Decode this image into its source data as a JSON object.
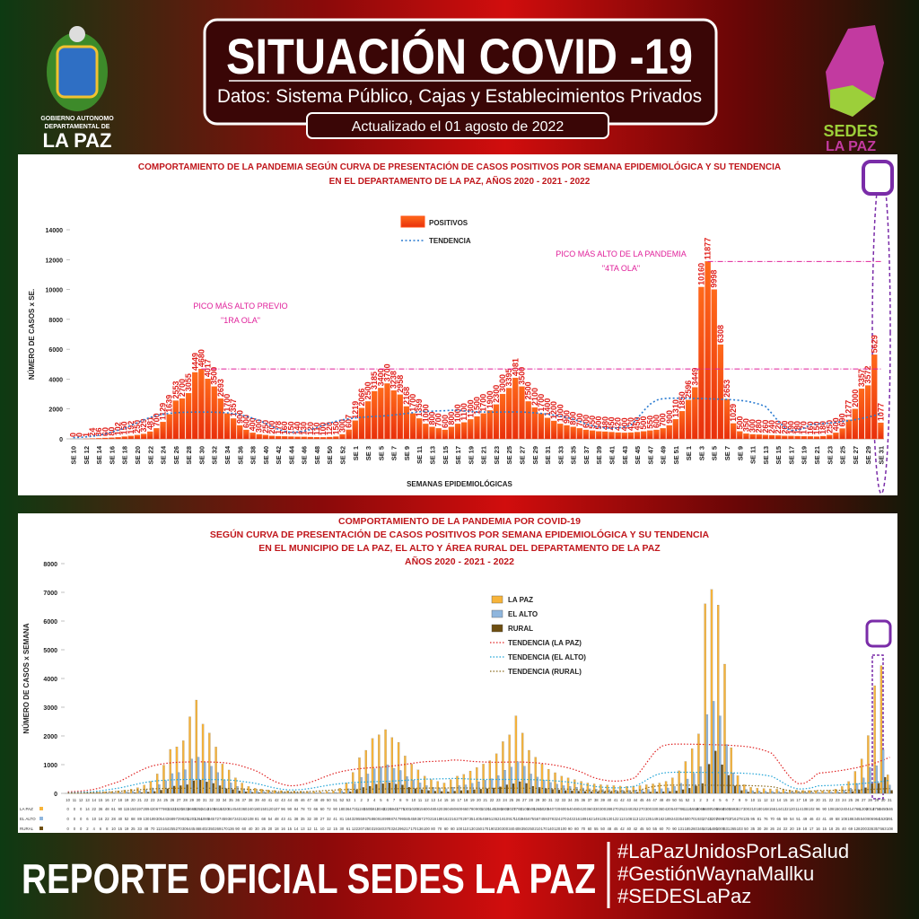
{
  "header": {
    "title": "SITUACIÓN COVID -19",
    "subtitle": "Datos: Sistema Público, Cajas y Establecimientos Privados",
    "updated": "Actualizado el  01  agosto  de 2022"
  },
  "logos": {
    "left": [
      "GOBIERNO AUTONOMO",
      "DEPARTAMENTAL DE",
      "LA PAZ"
    ],
    "right": [
      "SEDES",
      "LA PAZ"
    ]
  },
  "footer": {
    "title": "REPORTE OFICIAL SEDES LA PAZ",
    "hashtags": [
      "#LaPazUnidosPorLaSalud",
      "#GestiónWaynaMallku",
      "#SEDESLaPaz"
    ]
  },
  "chart_data": [
    {
      "type": "bar",
      "title": [
        "COMPORTAMIENTO DE LA PANDEMIA SEGÚN CURVA DE PRESENTACIÓN DE CASOS POSITIVOS POR SEMANA EPIDEMIOLÓGICA Y SU TENDENCIA",
        "EN EL DEPARTAMENTO DE LA PAZ, AÑOS 2020 - 2021 - 2022"
      ],
      "x_label": "SEMANAS EPIDEMIOLÓGICAS",
      "y_label": "NÚMERO DE CASOS x SE.",
      "trend_label": "TENDENCIA",
      "trend_color": "#2a7bd1",
      "annotations": [
        "PICO MÁS ALTO PREVIO",
        "\"1RA OLA\"",
        "PICO MÁS ALTO DE LA PANDEMIA",
        "\"4TA OLA\""
      ],
      "ylim": [
        0,
        14000
      ],
      "yticks": [
        0,
        2000,
        4000,
        6000,
        8000,
        10000,
        12000,
        14000
      ],
      "categories": [
        "SE 10",
        null,
        "SE 12",
        null,
        "SE 14",
        null,
        "SE 16",
        null,
        "SE 18",
        null,
        "SE 20",
        null,
        "SE 22",
        null,
        "SE 24",
        null,
        "SE 26",
        null,
        "SE 28",
        null,
        "SE 30",
        null,
        "SE 32",
        null,
        "SE 34",
        null,
        "SE 36",
        null,
        "SE 38",
        null,
        "SE 40",
        null,
        "SE 42",
        null,
        "SE 44",
        null,
        "SE 46",
        null,
        "SE 48",
        null,
        "SE 50",
        null,
        "SE 52",
        null,
        "SE 1",
        null,
        "SE 3",
        null,
        "SE 5",
        null,
        "SE 7",
        null,
        "SE 9",
        null,
        "SE 11",
        null,
        "SE 13",
        null,
        "SE 15",
        null,
        "SE 17",
        null,
        "SE 19",
        null,
        "SE 21",
        null,
        "SE 23",
        null,
        "SE 25",
        null,
        "SE 27",
        null,
        "SE 29",
        null,
        "SE 31",
        null,
        "SE 33",
        null,
        "SE 35",
        null,
        "SE 37",
        null,
        "SE 39",
        null,
        "SE 41",
        null,
        "SE 43",
        null,
        "SE 45",
        null,
        "SE 47",
        null,
        "SE 49",
        null,
        "SE 51",
        null,
        "SE 1",
        null,
        "SE 3",
        null,
        "SE 5",
        null,
        "SE 7",
        null,
        "SE 9",
        null,
        "SE 11",
        null,
        "SE 13",
        null,
        "SE 15",
        null,
        "SE 17",
        null,
        "SE 19",
        null,
        "SE 21",
        null,
        "SE 23",
        null,
        "SE 25",
        null,
        "SE 27",
        null,
        "SE 29",
        null,
        "SE 31"
      ],
      "series": [
        {
          "name": "POSITIVOS",
          "color": "#ff4d12",
          "values": [
            0,
            0,
            1,
            24,
            36,
            60,
            80,
            102,
            150,
            192,
            250,
            329,
            481,
            700,
            1129,
            1639,
            2553,
            2700,
            3055,
            4449,
            4680,
            4017,
            3500,
            2693,
            1700,
            1357,
            900,
            600,
            400,
            300,
            250,
            200,
            178,
            160,
            150,
            140,
            130,
            120,
            110,
            100,
            120,
            150,
            300,
            607,
            1219,
            2066,
            2500,
            3185,
            3400,
            3700,
            3238,
            2958,
            2168,
            1700,
            1359,
            1000,
            800,
            700,
            600,
            800,
            1000,
            1100,
            1300,
            1500,
            1700,
            1900,
            2300,
            3000,
            3395,
            4081,
            3500,
            2500,
            2100,
            1700,
            1400,
            1200,
            1000,
            900,
            800,
            700,
            600,
            550,
            500,
            480,
            450,
            420,
            400,
            420,
            450,
            500,
            550,
            600,
            700,
            900,
            1310,
            1850,
            2596,
            3449,
            10160,
            11877,
            9998,
            6308,
            2653,
            1029,
            500,
            350,
            300,
            280,
            260,
            240,
            220,
            200,
            190,
            180,
            170,
            160,
            150,
            180,
            250,
            400,
            690,
            1277,
            2000,
            3357,
            3572,
            5629,
            1077
          ]
        }
      ]
    },
    {
      "type": "grouped_bar",
      "title": [
        "COMPORTAMIENTO DE LA PANDEMIA POR COVID-19",
        "SEGÚN CURVA DE PRESENTACIÓN DE CASOS POSITIVOS POR SEMANA EPIDEMIOLÓGICA Y SU TENDENCIA",
        "EN EL  MUNICIPIO DE LA PAZ, EL ALTO Y ÁREA RURAL DEL DEPARTAMENTO DE LA PAZ",
        "AÑOS 2020 - 2021 - 2022"
      ],
      "y_label": "NÚMERO DE CASOS x SEMANA",
      "ylim": [
        0,
        8000
      ],
      "yticks": [
        0,
        1000,
        2000,
        3000,
        4000,
        5000,
        6000,
        7000,
        8000
      ],
      "categories": [
        "10",
        "11",
        "12",
        "13",
        "14",
        "15",
        "16",
        "17",
        "18",
        "19",
        "20",
        "21",
        "22",
        "23",
        "24",
        "25",
        "26",
        "27",
        "28",
        "29",
        "30",
        "31",
        "32",
        "33",
        "34",
        "35",
        "36",
        "37",
        "38",
        "39",
        "40",
        "41",
        "42",
        "43",
        "44",
        "45",
        "46",
        "47",
        "48",
        "49",
        "50",
        "51",
        "52",
        "53",
        "1",
        "2",
        "3",
        "4",
        "5",
        "6",
        "7",
        "8",
        "9",
        "10",
        "11",
        "12",
        "13",
        "14",
        "15",
        "16",
        "17",
        "18",
        "19",
        "20",
        "21",
        "22",
        "23",
        "24",
        "25",
        "26",
        "27",
        "28",
        "29",
        "30",
        "31",
        "32",
        "33",
        "34",
        "35",
        "36",
        "37",
        "38",
        "39",
        "40",
        "41",
        "42",
        "43",
        "44",
        "45",
        "46",
        "47",
        "48",
        "49",
        "50",
        "51",
        "52",
        "1",
        "2",
        "3",
        "4",
        "5",
        "6",
        "7",
        "8",
        "9",
        "10",
        "11",
        "12",
        "13",
        "14",
        "15",
        "16",
        "17",
        "18",
        "19",
        "20",
        "21",
        "22",
        "23",
        "24",
        "25",
        "26",
        "27",
        "28",
        "29",
        "30",
        "31"
      ],
      "series": [
        {
          "name": "LA PAZ",
          "color": "#f7b43a",
          "trend_name": "TENDENCIA (LA PAZ)",
          "trend_color": "#e02424",
          "values": [
            0,
            0,
            0,
            14,
            22,
            36,
            48,
            61,
            90,
            115,
            150,
            197,
            289,
            420,
            677,
            983,
            1532,
            1620,
            1833,
            2669,
            3250,
            2410,
            2100,
            1616,
            1020,
            814,
            540,
            360,
            240,
            180,
            150,
            120,
            107,
            96,
            90,
            84,
            78,
            72,
            66,
            60,
            72,
            90,
            180,
            364,
            731,
            1240,
            1500,
            1911,
            2040,
            2220,
            1943,
            1775,
            1301,
            1020,
            815,
            600,
            480,
            420,
            360,
            480,
            600,
            660,
            780,
            900,
            1020,
            1140,
            1380,
            1800,
            2037,
            2700,
            2100,
            1500,
            1260,
            1020,
            840,
            720,
            600,
            540,
            480,
            420,
            360,
            330,
            300,
            288,
            270,
            252,
            240,
            252,
            270,
            300,
            330,
            360,
            420,
            540,
            786,
            1110,
            1558,
            2069,
            6600,
            7100,
            6560,
            4500,
            1592,
            617,
            300,
            210,
            180,
            168,
            156,
            144,
            132,
            120,
            114,
            108,
            102,
            96,
            90,
            108,
            150,
            240,
            414,
            766,
            1200,
            2014,
            3750,
            4450,
            646
          ]
        },
        {
          "name": "EL ALTO",
          "color": "#8fb6dd",
          "trend_name": "TENDENCIA (EL ALTO)",
          "trend_color": "#1fa3d6",
          "values": [
            0,
            0,
            0,
            6,
            10,
            16,
            22,
            28,
            40,
            52,
            68,
            89,
            130,
            189,
            305,
            443,
            689,
            729,
            825,
            1201,
            1264,
            1085,
            945,
            727,
            459,
            367,
            243,
            162,
            108,
            81,
            68,
            54,
            48,
            43,
            41,
            38,
            35,
            32,
            30,
            27,
            32,
            41,
            81,
            164,
            329,
            558,
            675,
            860,
            918,
            999,
            874,
            799,
            585,
            459,
            367,
            270,
            216,
            189,
            162,
            216,
            270,
            297,
            351,
            405,
            459,
            513,
            621,
            810,
            917,
            1102,
            945,
            675,
            567,
            459,
            378,
            324,
            270,
            243,
            216,
            189,
            162,
            149,
            135,
            130,
            122,
            113,
            108,
            113,
            122,
            135,
            149,
            162,
            189,
            243,
            354,
            500,
            701,
            931,
            2743,
            3207,
            2699,
            1703,
            716,
            278,
            135,
            95,
            81,
            76,
            70,
            65,
            59,
            54,
            51,
            49,
            46,
            43,
            41,
            49,
            68,
            108,
            186,
            345,
            540,
            906,
            964,
            1520,
            291
          ]
        },
        {
          "name": "RURAL",
          "color": "#6e4f12",
          "trend_name": "TENDENCIA (RURAL)",
          "trend_color": "#8a6a1e",
          "values": [
            0,
            0,
            0,
            2,
            4,
            6,
            8,
            10,
            15,
            19,
            25,
            33,
            48,
            70,
            113,
            164,
            255,
            270,
            306,
            445,
            468,
            402,
            350,
            269,
            170,
            136,
            90,
            60,
            40,
            30,
            25,
            20,
            18,
            16,
            15,
            14,
            13,
            12,
            11,
            10,
            12,
            15,
            30,
            61,
            122,
            207,
            250,
            319,
            340,
            370,
            324,
            296,
            217,
            170,
            136,
            100,
            80,
            70,
            60,
            80,
            100,
            110,
            130,
            150,
            170,
            190,
            230,
            300,
            340,
            408,
            350,
            250,
            210,
            170,
            140,
            120,
            100,
            90,
            80,
            70,
            60,
            55,
            50,
            48,
            45,
            42,
            40,
            42,
            45,
            50,
            55,
            60,
            70,
            90,
            131,
            185,
            260,
            345,
            1016,
            1480,
            1000,
            631,
            265,
            103,
            50,
            35,
            30,
            28,
            26,
            24,
            22,
            20,
            19,
            18,
            17,
            16,
            15,
            18,
            25,
            40,
            69,
            128,
            200,
            336,
            357,
            563,
            108
          ]
        }
      ]
    }
  ]
}
